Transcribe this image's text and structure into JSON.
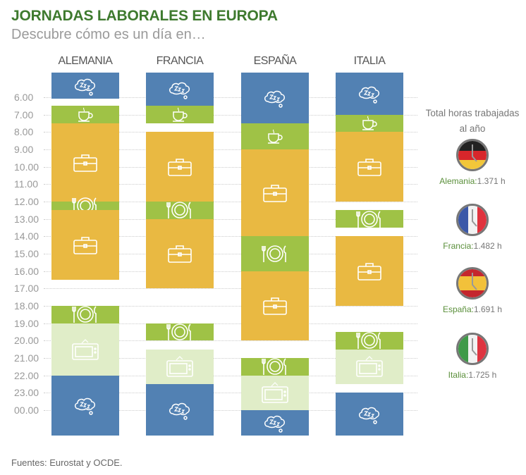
{
  "header": {
    "title": "JORNADAS LABORALES EN EUROPA",
    "subtitle": "Descubre cómo es un día en…"
  },
  "colors": {
    "sleep": "#5281b3",
    "breakfast": "#9fc246",
    "meal": "#9fc246",
    "work": "#e9b942",
    "leisure": "#e0edc8",
    "title": "#3e7a2e"
  },
  "chart_data": {
    "type": "table",
    "title": "JORNADAS LABORALES EN EUROPA",
    "y_ticks": [
      "6.00",
      "7.00",
      "8.00",
      "9.00",
      "10.00",
      "11.00",
      "12.00",
      "13.00",
      "14.00",
      "15.00",
      "16.00",
      "17.00",
      "18.00",
      "19.00",
      "20.00",
      "21.00",
      "22.00",
      "23.00",
      "00.00"
    ],
    "activity_icons": {
      "sleep": "zzz-cloud-icon",
      "breakfast": "coffee-cup-icon",
      "work": "briefcase-icon",
      "meal": "plate-cutlery-icon",
      "leisure": "tv-icon"
    },
    "countries": [
      {
        "name": "ALEMANIA",
        "blocks": [
          {
            "activity": "sleep",
            "start": null,
            "end": 6.1
          },
          {
            "activity": "breakfast",
            "start": 6.5,
            "end": 7.5
          },
          {
            "activity": "work",
            "start": 7.5,
            "end": 12
          },
          {
            "activity": "meal",
            "start": 12,
            "end": 12.5
          },
          {
            "activity": "work",
            "start": 12.5,
            "end": 16.5
          },
          {
            "activity": "meal",
            "start": 18,
            "end": 19
          },
          {
            "activity": "leisure",
            "start": 19,
            "end": 22
          },
          {
            "activity": "sleep",
            "start": 22,
            "end": null
          }
        ]
      },
      {
        "name": "FRANCIA",
        "blocks": [
          {
            "activity": "sleep",
            "start": null,
            "end": 6.5
          },
          {
            "activity": "breakfast",
            "start": 6.5,
            "end": 7.5
          },
          {
            "activity": "work",
            "start": 8,
            "end": 12
          },
          {
            "activity": "meal",
            "start": 12,
            "end": 13
          },
          {
            "activity": "work",
            "start": 13,
            "end": 17
          },
          {
            "activity": "meal",
            "start": 19,
            "end": 20
          },
          {
            "activity": "leisure",
            "start": 20.5,
            "end": 22.5
          },
          {
            "activity": "sleep",
            "start": 22.5,
            "end": null
          }
        ]
      },
      {
        "name": "ESPAÑA",
        "blocks": [
          {
            "activity": "sleep",
            "start": null,
            "end": 7.5
          },
          {
            "activity": "breakfast",
            "start": 7.5,
            "end": 9
          },
          {
            "activity": "work",
            "start": 9,
            "end": 14
          },
          {
            "activity": "meal",
            "start": 14,
            "end": 16
          },
          {
            "activity": "work",
            "start": 16,
            "end": 20
          },
          {
            "activity": "meal",
            "start": 21,
            "end": 22
          },
          {
            "activity": "leisure",
            "start": 22,
            "end": 24
          },
          {
            "activity": "sleep",
            "start": 24,
            "end": null
          }
        ]
      },
      {
        "name": "ITALIA",
        "blocks": [
          {
            "activity": "sleep",
            "start": null,
            "end": 7
          },
          {
            "activity": "breakfast",
            "start": 7,
            "end": 8
          },
          {
            "activity": "work",
            "start": 8,
            "end": 12
          },
          {
            "activity": "meal",
            "start": 12.5,
            "end": 13.5
          },
          {
            "activity": "work",
            "start": 14,
            "end": 18
          },
          {
            "activity": "meal",
            "start": 19.5,
            "end": 20.5
          },
          {
            "activity": "leisure",
            "start": 20.5,
            "end": 22.5
          },
          {
            "activity": "sleep",
            "start": 23,
            "end": null
          }
        ]
      }
    ]
  },
  "totals": {
    "title": "Total horas trabajadas al año",
    "items": [
      {
        "country": "Alemania:",
        "value": "1.371 h",
        "hours": 1371,
        "flag": [
          "#222222",
          "#d8262b",
          "#f2c73a"
        ],
        "orientation": "horizontal"
      },
      {
        "country": "Francia:",
        "value": "1.482 h",
        "hours": 1482,
        "flag": [
          "#3b58a8",
          "#f2f2f2",
          "#e0323d"
        ],
        "orientation": "vertical"
      },
      {
        "country": "España:",
        "value": "1.691 h",
        "hours": 1691,
        "flag": [
          "#c4262e",
          "#f2c13a",
          "#c4262e"
        ],
        "orientation": "horizontal-spain"
      },
      {
        "country": "Italia:",
        "value": "1.725 h",
        "hours": 1725,
        "flag": [
          "#3f9a48",
          "#f2f2f2",
          "#de3440"
        ],
        "orientation": "vertical"
      }
    ]
  },
  "footer": {
    "source": "Fuentes: Eurostat y OCDE."
  }
}
